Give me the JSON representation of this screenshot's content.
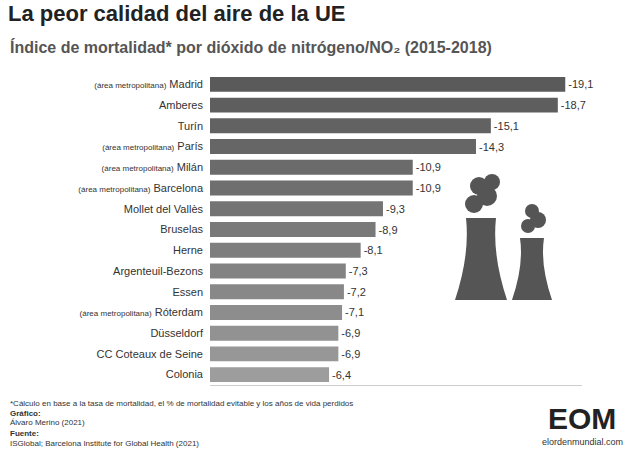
{
  "chart_data": {
    "type": "bar",
    "orientation": "horizontal",
    "title": "La peor calidad del aire de la UE",
    "subtitle": "Índice de mortalidad* por dióxido de nitrógeno/NO₂ (2015-2018)",
    "categories": [
      "(área metropolitana) Madrid",
      "Amberes",
      "Turín",
      "(área metropolitana) París",
      "(área metropolitana) Milán",
      "(área metropolitana) Barcelona",
      "Mollet del Vallès",
      "Bruselas",
      "Herne",
      "Argenteuil-Bezons",
      "Essen",
      "(área metropolitana) Róterdam",
      "Düsseldorf",
      "CC Coteaux de Seine",
      "Colonia"
    ],
    "values": [
      -19.1,
      -18.7,
      -15.1,
      -14.3,
      -10.9,
      -10.9,
      -9.3,
      -8.9,
      -8.1,
      -7.3,
      -7.2,
      -7.1,
      -6.9,
      -6.9,
      -6.4
    ],
    "value_labels": [
      "-19,1",
      "-18,7",
      "-15,1",
      "-14,3",
      "-10,9",
      "-10,9",
      "-9,3",
      "-8,9",
      "-8,1",
      "-7,3",
      "-7,2",
      "-7,1",
      "-6,9",
      "-6,9",
      "-6,4"
    ],
    "colors": [
      "#5a5a5a",
      "#5e5e5e",
      "#626262",
      "#666666",
      "#6b6b6b",
      "#6f6f6f",
      "#747474",
      "#797979",
      "#7e7e7e",
      "#838383",
      "#888888",
      "#8d8d8d",
      "#929292",
      "#979797",
      "#9d9d9d"
    ],
    "xlim": [
      0,
      -20
    ],
    "data_labels": true,
    "tick_labels": "y",
    "grid": false,
    "annotations": [
      "*Cálculo en base a la tasa de mortalidad, el % de mortalidad evitable y los años de vida perdidos",
      "Gráfico:",
      "Álvaro Merino (2021)",
      "Fuente:",
      "ISGlobal; Barcelona Institute for Global Health (2021)",
      "EOM",
      "elordenmundial.com"
    ]
  }
}
